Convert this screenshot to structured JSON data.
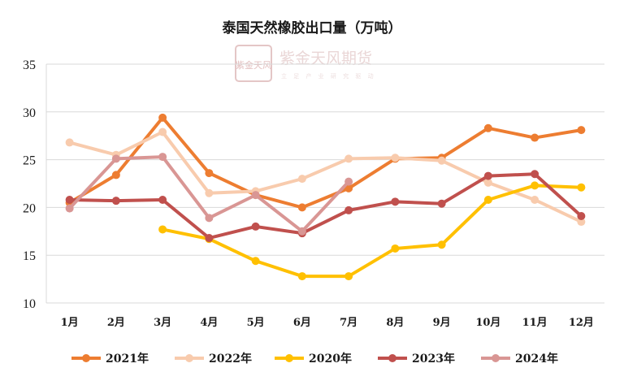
{
  "watermark": {
    "logo_text": "紫金天风",
    "name": "紫金天风期货",
    "slogan": "立 足 产 业  研 究 驱 动"
  },
  "chart_data": {
    "type": "line",
    "title": "泰国天然橡胶出口量（万吨）",
    "categories": [
      "1月",
      "2月",
      "3月",
      "4月",
      "5月",
      "6月",
      "7月",
      "8月",
      "9月",
      "10月",
      "11月",
      "12月"
    ],
    "ylim": [
      10,
      35
    ],
    "yticks": [
      10,
      15,
      20,
      25,
      30,
      35
    ],
    "grid": true,
    "legend_position": "bottom",
    "series": [
      {
        "name": "2021年",
        "color": "#ED7D31",
        "values": [
          20.5,
          23.4,
          29.4,
          23.6,
          21.3,
          20.0,
          22.0,
          25.1,
          25.2,
          28.3,
          27.3,
          28.1
        ]
      },
      {
        "name": "2022年",
        "color": "#F8CBAD",
        "values": [
          26.8,
          25.5,
          27.9,
          21.5,
          21.7,
          23.0,
          25.1,
          25.2,
          24.9,
          22.6,
          20.8,
          18.5
        ]
      },
      {
        "name": "2020年",
        "color": "#FFC000",
        "values": [
          null,
          null,
          17.7,
          16.7,
          14.4,
          12.8,
          12.8,
          15.7,
          16.1,
          20.8,
          22.3,
          22.1
        ]
      },
      {
        "name": "2023年",
        "color": "#C0504D",
        "values": [
          20.8,
          20.7,
          20.8,
          16.8,
          18.0,
          17.3,
          19.7,
          20.6,
          20.4,
          23.3,
          23.5,
          19.1
        ]
      },
      {
        "name": "2024年",
        "color": "#D99694",
        "values": [
          19.9,
          25.1,
          25.3,
          18.9,
          21.3,
          17.5,
          22.7,
          null,
          null,
          null,
          null,
          null
        ]
      }
    ]
  }
}
